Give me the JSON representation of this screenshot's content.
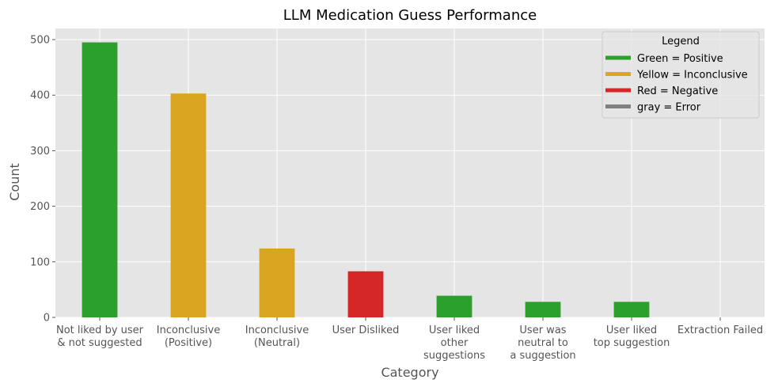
{
  "chart_data": {
    "type": "bar",
    "title": "LLM Medication Guess Performance",
    "xlabel": "Category",
    "ylabel": "Count",
    "ylim": [
      0,
      520
    ],
    "yticks": [
      0,
      100,
      200,
      300,
      400,
      500
    ],
    "grid": true,
    "categories": [
      "Not liked by user\n& not suggested",
      "Inconclusive\n(Positive)",
      "Inconclusive\n(Neutral)",
      "User Disliked",
      "User liked\nother\nsuggestions",
      "User was\nneutral to\na suggestion",
      "User liked\ntop suggestion",
      "Extraction Failed"
    ],
    "values": [
      495,
      403,
      124,
      83,
      39,
      28,
      28,
      0
    ],
    "bar_colors": [
      "#2ca02c",
      "#daa520",
      "#daa520",
      "#d62728",
      "#2ca02c",
      "#2ca02c",
      "#2ca02c",
      "#808080"
    ],
    "legend": {
      "title": "Legend",
      "placement": "top-right",
      "entries": [
        {
          "label": "Green = Positive",
          "color": "#2ca02c"
        },
        {
          "label": "Yellow = Inconclusive",
          "color": "#daa520"
        },
        {
          "label": "Red = Negative",
          "color": "#d62728"
        },
        {
          "label": "gray = Error",
          "color": "#808080"
        }
      ]
    }
  }
}
